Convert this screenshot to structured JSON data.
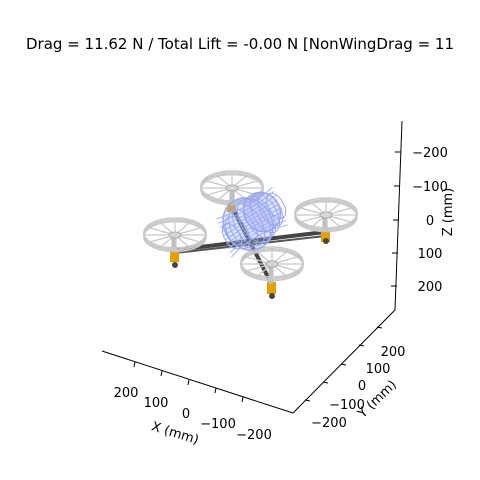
{
  "title": "Drag = 11.62 N / Total Lift = -0.00 N [NonWingDrag = 11",
  "axes": {
    "x": {
      "label": "X (mm)",
      "ticks": [
        "200",
        "100",
        "0",
        "−100",
        "−200"
      ]
    },
    "y": {
      "label": "Y (mm)",
      "ticks": [
        "−200",
        "−100",
        "0",
        "100",
        "200"
      ]
    },
    "z": {
      "label": "Z (mm)",
      "ticks": [
        "−200",
        "−100",
        "0",
        "100",
        "200"
      ]
    }
  },
  "colors": {
    "rotor": "#c8c8c8",
    "arm": "#444444",
    "motor": "#e0a000",
    "body": "#9aa8f0"
  }
}
